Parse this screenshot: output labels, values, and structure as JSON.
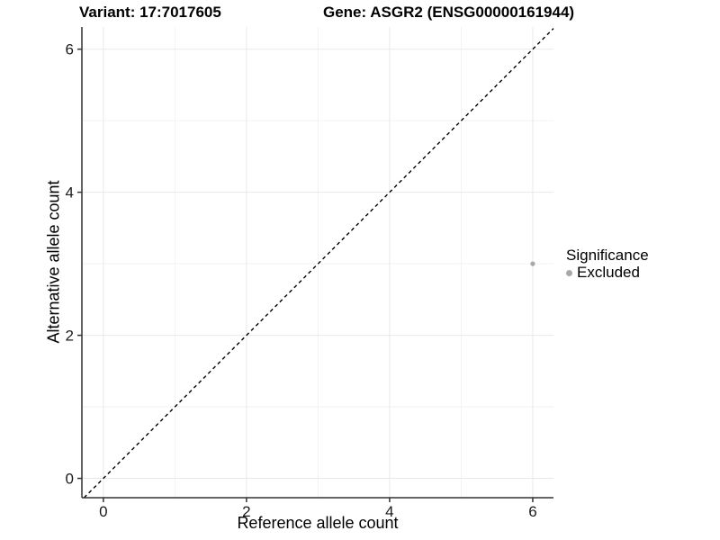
{
  "header": {
    "variant_title": "Variant: 17:7017605",
    "gene_title": "Gene: ASGR2 (ENSG00000161944)"
  },
  "chart_data": {
    "type": "scatter",
    "title": "Variant: 17:7017605 / Gene: ASGR2 (ENSG00000161944)",
    "xlabel": "Reference allele count",
    "ylabel": "Alternative allele count",
    "xlim": [
      -0.3,
      6.29
    ],
    "ylim": [
      -0.27,
      6.31
    ],
    "x_ticks": [
      0,
      2,
      4,
      6
    ],
    "y_ticks": [
      0,
      2,
      4,
      6
    ],
    "x_minor_grid": [
      1,
      3,
      5
    ],
    "y_minor_grid": [
      1,
      3,
      5
    ],
    "grid": "on",
    "identity_line": {
      "slope": 1,
      "intercept": 0,
      "style": "dashed",
      "color": "#000000"
    },
    "points": [
      {
        "x": 6,
        "y": 3,
        "significance": "Excluded",
        "color": "#a8a8a8",
        "radius": 2.6
      }
    ],
    "legend": {
      "position": "right",
      "title": "Significance",
      "entries": [
        {
          "label": "Excluded",
          "color": "#a8a8a8"
        }
      ]
    }
  },
  "colors": {
    "background": "#ffffff",
    "axis_line": "#333333",
    "tick_mark": "#333333",
    "tick_label": "#1a1a1a",
    "grid_major": "#e9e9e9",
    "grid_minor": "#f2f2f2"
  }
}
